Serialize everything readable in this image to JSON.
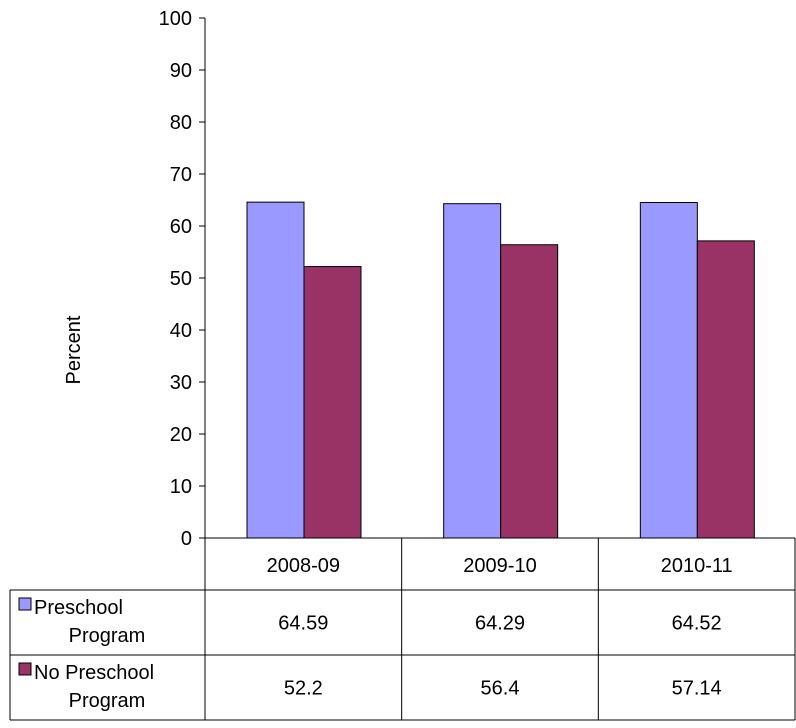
{
  "chart_data": {
    "type": "bar",
    "categories": [
      "2008-09",
      "2009-10",
      "2010-11"
    ],
    "series": [
      {
        "name": "Preschool Program",
        "legend_lines": [
          "Preschool",
          "Program"
        ],
        "values": [
          64.59,
          64.29,
          64.52
        ],
        "labels": [
          "64.59",
          "64.29",
          "64.52"
        ],
        "color": "#9999ff"
      },
      {
        "name": "No Preschool Program",
        "legend_lines": [
          "No Preschool",
          "Program"
        ],
        "values": [
          52.2,
          56.4,
          57.14
        ],
        "labels": [
          "52.2",
          "56.4",
          "57.14"
        ],
        "color": "#993366"
      }
    ],
    "ylabel": "Percent",
    "ylim": [
      0,
      100
    ],
    "yticks": [
      0,
      10,
      20,
      30,
      40,
      50,
      60,
      70,
      80,
      90,
      100
    ],
    "grid": false,
    "legend": "data-table"
  }
}
